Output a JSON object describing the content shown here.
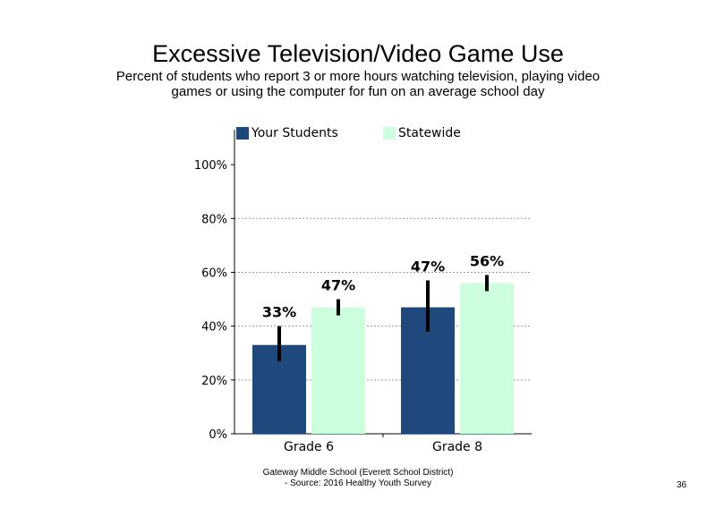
{
  "title": "Excessive Television/Video Game Use",
  "subtitle": "Percent of students who report 3 or more hours watching television, playing video games or using the computer for fun on an average school day",
  "footer": {
    "line1": "Gateway Middle School (Everett School District)",
    "line2": "- Source: 2016 Healthy  Youth Survey"
  },
  "page_number": "36",
  "chart_data": {
    "type": "bar",
    "title": "",
    "xlabel": "",
    "ylabel": "",
    "categories": [
      "Grade 6",
      "Grade 8"
    ],
    "ylim": [
      0,
      100
    ],
    "yticks": [
      0,
      20,
      40,
      60,
      80,
      100
    ],
    "ytick_labels": [
      "0%",
      "20%",
      "40%",
      "60%",
      "80%",
      "100%"
    ],
    "grid": true,
    "legend": "top",
    "series": [
      {
        "name": "Your Students",
        "color": "#1F497D",
        "values": [
          33,
          47
        ],
        "labels": [
          "33%",
          "47%"
        ],
        "error_low": [
          27,
          38
        ],
        "error_high": [
          40,
          57
        ]
      },
      {
        "name": "Statewide",
        "color": "#CCFFDD",
        "values": [
          47,
          56
        ],
        "labels": [
          "47%",
          "56%"
        ],
        "error_low": [
          44,
          53
        ],
        "error_high": [
          50,
          59
        ]
      }
    ]
  }
}
